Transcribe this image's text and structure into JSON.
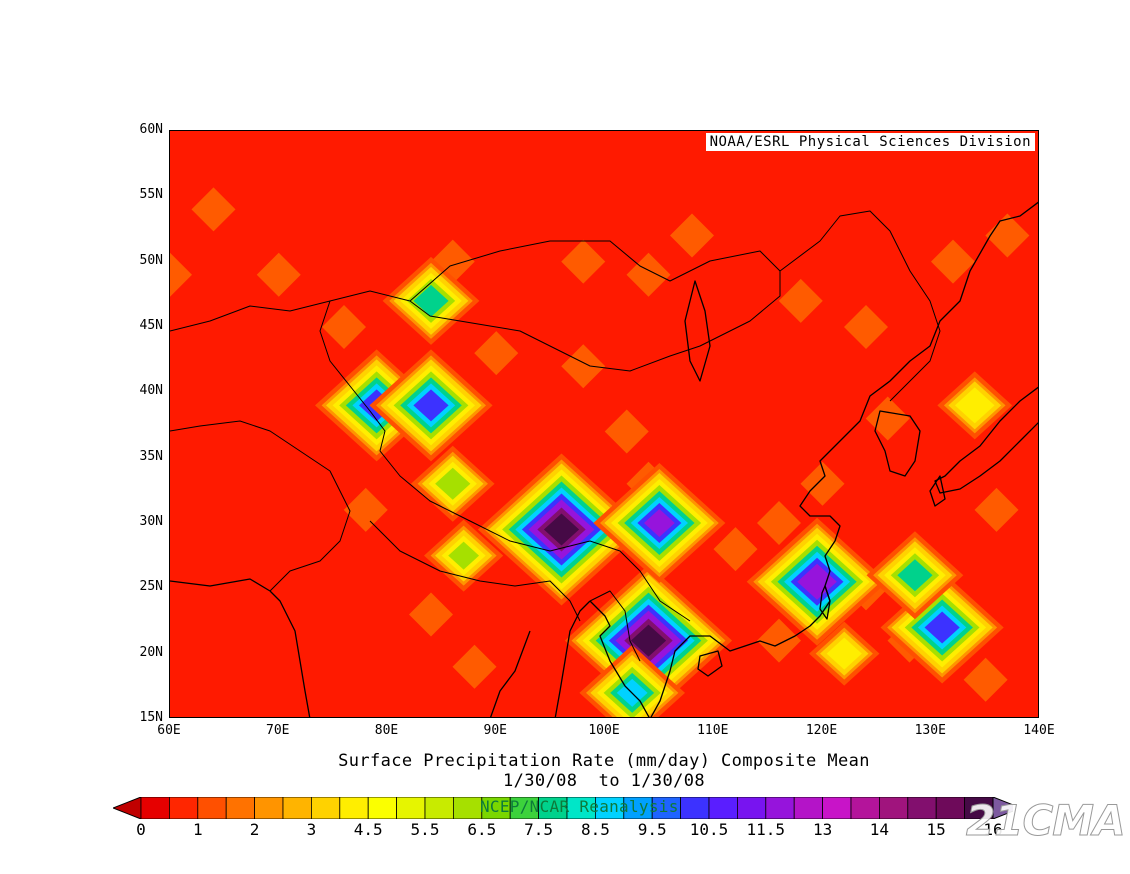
{
  "map": {
    "credit": "NOAA/ESRL Physical Sciences Division",
    "lat_ticks": [
      "60N",
      "55N",
      "50N",
      "45N",
      "40N",
      "35N",
      "30N",
      "25N",
      "20N",
      "15N"
    ],
    "lon_ticks": [
      "60E",
      "70E",
      "80E",
      "90E",
      "100E",
      "110E",
      "120E",
      "130E",
      "140E"
    ],
    "lon_range": [
      60,
      140
    ],
    "lat_range": [
      15,
      60
    ],
    "background_color": "#ff1a00",
    "coastline_color": "#000000"
  },
  "title": {
    "line1": "Surface Precipitation Rate (mm/day) Composite Mean",
    "line2": "1/30/08  to 1/30/08",
    "reanalysis": "NCEP/NCAR Reanalysis"
  },
  "colorbar": {
    "labels": [
      "0",
      "1",
      "2",
      "3",
      "4.5",
      "5.5",
      "6.5",
      "7.5",
      "8.5",
      "9.5",
      "10.5",
      "11.5",
      "13",
      "14",
      "15",
      "16"
    ],
    "colors": [
      "#e60000",
      "#ff2600",
      "#ff5000",
      "#ff7200",
      "#ff9400",
      "#ffb400",
      "#ffd200",
      "#ffee00",
      "#fbff00",
      "#e6f500",
      "#c8eb00",
      "#a6e000",
      "#7ad700",
      "#3cd23c",
      "#00d28c",
      "#00e6c8",
      "#00d2ff",
      "#00a0ff",
      "#1e64ff",
      "#3c32ff",
      "#5a1eff",
      "#7814f0",
      "#9614dc",
      "#b414c8",
      "#c814c8",
      "#b4149b",
      "#a0147d",
      "#820f6e",
      "#6e0a5a",
      "#460a46"
    ],
    "under_color": "#c00000",
    "over_color": "#7d5aa0"
  },
  "watermark": "21CMA",
  "precip_features": [
    {
      "lon": 96,
      "lat": 29.5,
      "value": 16
    },
    {
      "lon": 104,
      "lat": 21,
      "value": 16
    },
    {
      "lon": 119.5,
      "lat": 25.5,
      "value": 13
    },
    {
      "lon": 105,
      "lat": 30,
      "value": 12
    },
    {
      "lon": 79,
      "lat": 39,
      "value": 11
    },
    {
      "lon": 84,
      "lat": 39,
      "value": 11
    },
    {
      "lon": 131,
      "lat": 22,
      "value": 11
    },
    {
      "lon": 128.5,
      "lat": 26,
      "value": 8
    },
    {
      "lon": 102.5,
      "lat": 17,
      "value": 9
    },
    {
      "lon": 84,
      "lat": 47,
      "value": 8
    },
    {
      "lon": 86,
      "lat": 33,
      "value": 6.5
    },
    {
      "lon": 134,
      "lat": 39,
      "value": 5.5
    },
    {
      "lon": 87,
      "lat": 27.5,
      "value": 6
    },
    {
      "lon": 122,
      "lat": 20,
      "value": 5
    }
  ]
}
